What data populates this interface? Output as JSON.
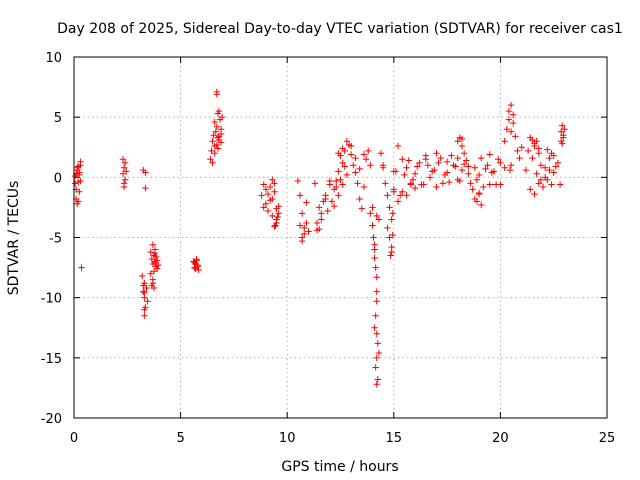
{
  "chart_data": {
    "type": "scatter",
    "title": "Day 208 of 2025, Sidereal Day-to-day VTEC variation (SDTVAR) for receiver cas1",
    "xlabel": "GPS time / hours",
    "ylabel": "SDTVAR / TECUs",
    "xlim": [
      0,
      25
    ],
    "ylim": [
      -20,
      10
    ],
    "xticks": [
      0,
      5,
      10,
      15,
      20,
      25
    ],
    "yticks": [
      10,
      5,
      0,
      -5,
      -10,
      -15,
      -20
    ],
    "xtick_labels": [
      "0",
      "5",
      "10",
      "15",
      "20",
      "25"
    ],
    "ytick_labels": [
      "10",
      "5",
      "0",
      "-5",
      "-10",
      "-15",
      "-20"
    ],
    "grid": true,
    "marker": "+",
    "color": "#ff0000",
    "series": [
      {
        "name": "SDTVAR",
        "x": [
          0.05,
          0.1,
          0.15,
          0.2,
          0.25,
          0.3,
          0.05,
          0.1,
          0.15,
          0.2,
          0.25,
          0.3,
          0.1,
          0.2,
          0.15,
          0.25,
          0.3,
          0.35,
          2.3,
          2.35,
          2.4,
          2.3,
          2.35,
          2.4,
          2.45,
          2.35,
          3.2,
          3.25,
          3.3,
          3.35,
          3.3,
          3.25,
          3.3,
          3.35,
          3.25,
          3.3,
          3.4,
          3.45,
          3.3,
          3.35,
          3.6,
          3.65,
          3.7,
          3.75,
          3.8,
          3.85,
          3.9,
          3.95,
          3.6,
          3.7,
          3.8,
          3.9,
          3.65,
          3.75,
          3.85,
          3.7,
          3.8,
          3.75,
          3.7,
          3.8,
          5.6,
          5.65,
          5.7,
          5.75,
          5.8,
          5.85,
          5.65,
          5.75,
          5.7,
          5.8,
          6.4,
          6.45,
          6.5,
          6.55,
          6.6,
          6.65,
          6.7,
          6.75,
          6.8,
          6.85,
          6.9,
          6.95,
          6.5,
          6.6,
          6.7,
          6.8,
          6.9,
          6.6,
          6.7,
          6.75,
          6.8,
          6.9,
          6.7,
          6.75,
          8.8,
          8.9,
          9.0,
          9.1,
          9.2,
          9.3,
          9.4,
          9.5,
          9.6,
          8.9,
          9.0,
          9.1,
          9.3,
          9.4,
          9.5,
          9.2,
          9.3,
          9.4,
          9.5,
          9.6,
          9.45,
          9.55,
          10.5,
          10.6,
          10.7,
          10.8,
          10.9,
          11.0,
          10.6,
          10.7,
          10.8,
          10.9,
          10.7,
          11.3,
          11.4,
          11.5,
          11.6,
          11.7,
          11.8,
          11.9,
          12.0,
          12.1,
          12.2,
          12.3,
          12.4,
          11.4,
          11.5,
          11.6,
          11.8,
          12.0,
          12.2,
          12.3,
          12.4,
          12.5,
          12.6,
          12.7,
          12.8,
          12.9,
          13.0,
          13.1,
          13.2,
          13.3,
          13.4,
          13.5,
          13.6,
          13.7,
          13.8,
          13.9,
          12.6,
          12.8,
          13.0,
          13.2,
          13.4,
          13.6,
          12.5,
          12.7,
          12.4,
          12.6,
          13.9,
          14.0,
          14.05,
          14.1,
          14.15,
          14.2,
          14.2,
          14.2,
          14.15,
          14.1,
          14.2,
          14.25,
          14.3,
          14.0,
          14.1,
          14.2,
          14.15,
          14.25,
          14.2,
          14.2,
          14.3,
          14.1,
          14.4,
          14.5,
          14.6,
          14.7,
          14.8,
          14.9,
          14.5,
          14.7,
          14.8,
          14.9,
          14.85,
          14.9,
          14.95,
          15.0,
          15.0,
          14.95,
          15.0,
          15.2,
          15.4,
          15.6,
          15.8,
          16.0,
          16.2,
          16.4,
          16.6,
          16.8,
          17.0,
          17.2,
          17.4,
          17.6,
          17.8,
          18.0,
          18.2,
          18.4,
          18.6,
          18.8,
          19.0,
          19.2,
          19.4,
          19.6,
          19.8,
          20.0,
          20.2,
          15.1,
          15.3,
          15.5,
          15.7,
          15.9,
          16.1,
          16.3,
          16.5,
          16.7,
          16.9,
          17.1,
          17.3,
          17.5,
          17.7,
          17.9,
          18.1,
          18.3,
          18.5,
          18.7,
          18.9,
          19.1,
          19.3,
          19.5,
          19.7,
          19.9,
          15.2,
          15.4,
          15.6,
          15.8,
          16.0,
          16.5,
          17.0,
          17.5,
          18.0,
          18.2,
          18.5,
          19.0,
          19.5,
          20.0,
          18.0,
          18.1,
          18.2,
          18.3,
          18.8,
          18.9,
          19.0,
          19.1,
          20.2,
          20.3,
          20.4,
          20.5,
          20.6,
          20.7,
          20.8,
          20.9,
          21.0,
          20.4,
          20.5,
          20.6,
          20.5,
          20.45,
          21.2,
          21.3,
          21.4,
          21.5,
          21.6,
          21.7,
          21.8,
          21.9,
          22.0,
          22.1,
          22.2,
          22.3,
          22.4,
          22.5,
          22.6,
          22.7,
          21.4,
          21.6,
          21.8,
          22.0,
          22.2,
          22.4,
          21.5,
          21.7,
          21.9,
          22.1,
          22.3,
          22.5,
          21.6,
          21.8,
          22.8,
          22.85,
          22.9,
          22.95,
          23.0,
          22.85,
          22.9,
          22.95
        ],
        "y": [
          -0.5,
          0.3,
          0.8,
          -0.4,
          -1.2,
          1.0,
          0.1,
          -1.8,
          0.6,
          -2.0,
          0.4,
          -0.3,
          -1.0,
          0.9,
          -2.2,
          0.2,
          1.3,
          -7.5,
          1.5,
          0.8,
          -0.2,
          0.3,
          -0.8,
          1.2,
          0.5,
          -0.5,
          -8.2,
          -9.0,
          -10.0,
          -10.8,
          -11.5,
          -9.5,
          -11.0,
          -0.9,
          0.6,
          -8.8,
          -9.2,
          -10.3,
          -9.6,
          0.4,
          -6.2,
          -6.8,
          -7.2,
          -6.5,
          -7.0,
          -7.4,
          -6.9,
          -7.3,
          -8.0,
          -8.5,
          -6.0,
          -7.6,
          -9.0,
          -9.2,
          -6.6,
          -5.6,
          -6.3,
          -7.8,
          -8.8,
          -7.1,
          -7.0,
          -7.5,
          -7.2,
          -6.8,
          -7.4,
          -7.7,
          -7.1,
          -6.9,
          -7.6,
          -7.3,
          1.5,
          2.2,
          3.0,
          3.5,
          2.6,
          3.8,
          4.2,
          2.4,
          3.4,
          4.8,
          2.9,
          5.0,
          1.2,
          4.6,
          7.1,
          5.5,
          3.6,
          2.0,
          6.9,
          5.3,
          3.1,
          4.0,
          2.7,
          3.3,
          -1.5,
          -2.5,
          -1.0,
          -2.8,
          -0.8,
          -1.8,
          -0.5,
          -3.8,
          -3.0,
          -0.6,
          -2.2,
          -1.4,
          -3.2,
          -4.1,
          -2.6,
          -1.9,
          -0.2,
          -1.2,
          -3.5,
          -2.4,
          -4.0,
          -3.3,
          -0.3,
          -4.0,
          -5.3,
          -4.7,
          -3.8,
          -4.5,
          -1.5,
          -5.0,
          -4.2,
          -2.1,
          -3.0,
          -0.5,
          -3.8,
          -4.3,
          -3.0,
          -2.0,
          -1.5,
          -2.8,
          -0.3,
          -2.0,
          -1.0,
          -0.8,
          -1.5,
          -4.4,
          -2.5,
          -3.5,
          -1.8,
          -0.6,
          -2.4,
          -0.3,
          0.5,
          1.8,
          2.4,
          0.9,
          3.0,
          2.7,
          1.9,
          1.0,
          0.4,
          -0.5,
          -1.8,
          -2.6,
          -0.8,
          1.5,
          2.2,
          1.0,
          -0.6,
          0.2,
          2.6,
          1.6,
          0.7,
          1.9,
          -0.2,
          2.2,
          2.0,
          1.2,
          -3.0,
          -4.0,
          -5.0,
          -6.0,
          -7.5,
          -8.3,
          -9.5,
          -10.3,
          -11.5,
          -12.5,
          -13.0,
          -13.8,
          -14.6,
          -2.5,
          -6.7,
          -15.0,
          -15.8,
          -16.8,
          -17.2,
          -3.2,
          -3.5,
          -5.6,
          2.0,
          0.8,
          -0.5,
          -1.5,
          -2.5,
          -3.5,
          1.0,
          -4.2,
          -5.0,
          -5.8,
          -6.5,
          -6.2,
          -4.8,
          -1.2,
          0.5,
          -3.0,
          -1.0,
          2.6,
          1.5,
          0.8,
          -0.5,
          0.3,
          1.2,
          -0.6,
          1.0,
          0.5,
          -0.8,
          1.6,
          0.2,
          -0.4,
          1.0,
          -0.2,
          0.6,
          1.4,
          -0.5,
          0.8,
          0.2,
          -0.8,
          1.0,
          0.4,
          -0.6,
          1.2,
          0.8,
          0.5,
          -1.5,
          0.2,
          1.4,
          -0.2,
          0.9,
          -0.6,
          1.5,
          0.0,
          0.6,
          1.2,
          -0.5,
          0.4,
          1.8,
          0.9,
          -0.3,
          1.1,
          0.3,
          -1.0,
          -0.2,
          1.6,
          0.7,
          -0.6,
          0.5,
          1.5,
          -2.0,
          -1.2,
          -1.5,
          -0.6,
          -0.9,
          1.8,
          2.0,
          1.3,
          1.6,
          3.2,
          0.9,
          -1.4,
          1.9,
          -0.6,
          3.0,
          3.3,
          2.6,
          2.0,
          -1.8,
          -2.0,
          -1.3,
          -2.3,
          3.0,
          4.0,
          5.5,
          6.0,
          4.5,
          3.4,
          2.2,
          1.6,
          2.5,
          4.8,
          3.8,
          5.2,
          1.0,
          0.6,
          0.6,
          2.2,
          3.3,
          3.1,
          2.6,
          3.0,
          2.0,
          1.0,
          -0.8,
          0.8,
          2.3,
          1.6,
          2.0,
          0.4,
          0.9,
          1.2,
          -1.0,
          -1.4,
          -0.5,
          -0.8,
          -0.2,
          -0.6,
          1.6,
          0.3,
          -0.2,
          0.0,
          0.6,
          1.8,
          2.8,
          2.4,
          -0.6,
          3.0,
          4.3,
          3.5,
          4.0,
          3.8,
          2.8,
          3.3
        ]
      }
    ]
  }
}
